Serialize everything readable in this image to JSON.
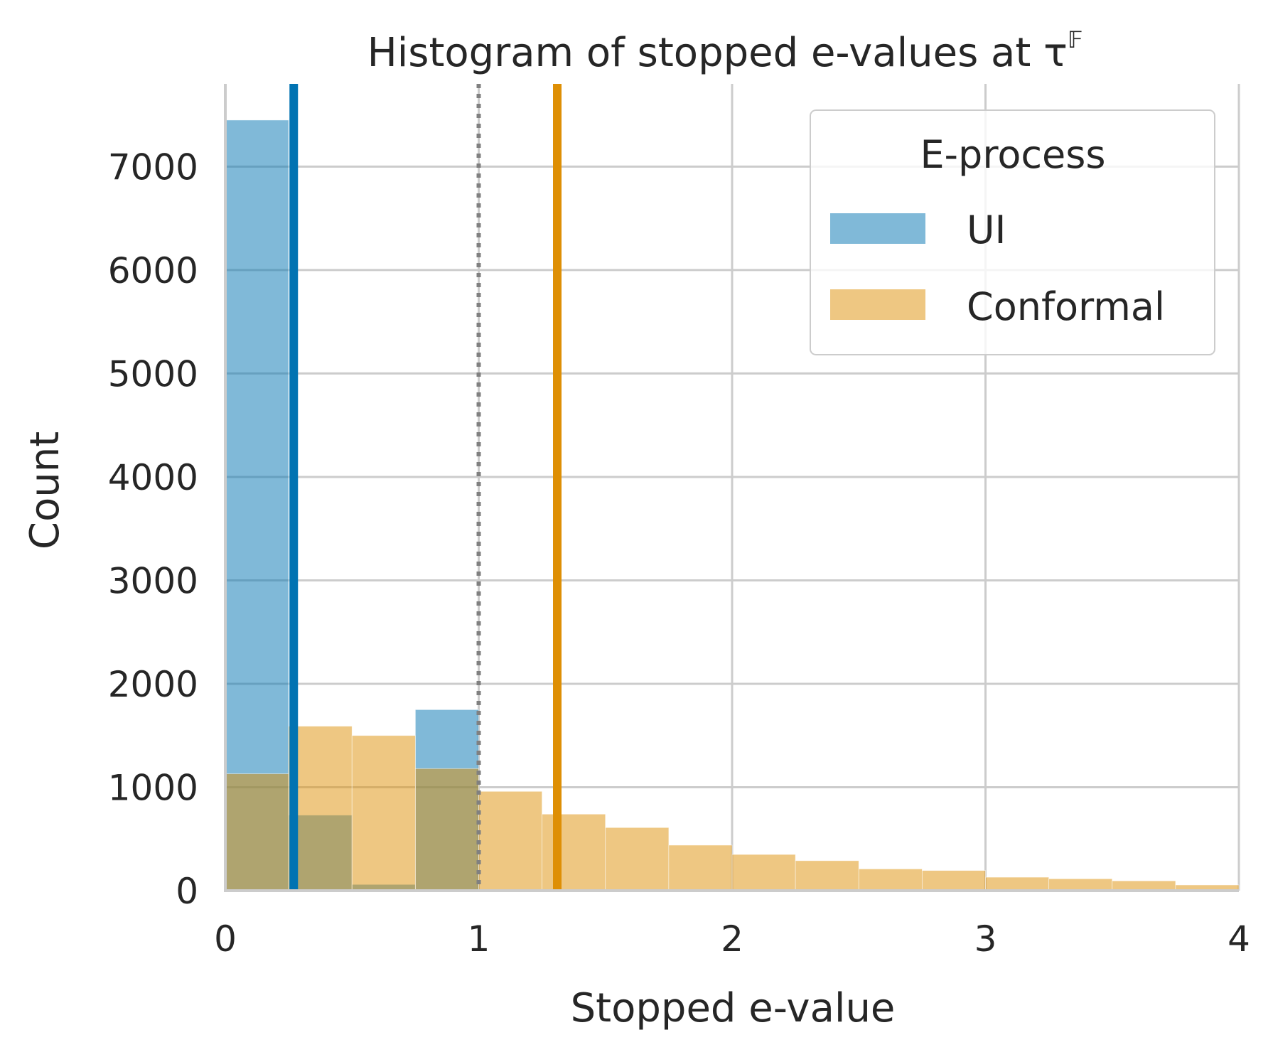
{
  "chart_data": {
    "type": "bar",
    "title": "Histogram of stopped e-values at τ",
    "title_superscript": "𝔽",
    "xlabel": "Stopped e-value",
    "ylabel": "Count",
    "xlim": [
      0,
      4
    ],
    "ylim": [
      0,
      7800
    ],
    "xticks": [
      0,
      1,
      2,
      3,
      4
    ],
    "yticks": [
      0,
      1000,
      2000,
      3000,
      4000,
      5000,
      6000,
      7000
    ],
    "grid": true,
    "bin_edges": [
      0,
      0.25,
      0.5,
      0.75,
      1.0,
      1.25,
      1.5,
      1.75,
      2.0,
      2.25,
      2.5,
      2.75,
      3.0,
      3.25,
      3.5,
      3.75,
      4.0
    ],
    "series": [
      {
        "name": "UI",
        "color": "#0173b2",
        "fill_opacity": 0.5,
        "values": [
          7450,
          730,
          60,
          1750,
          0,
          0,
          0,
          0,
          0,
          0,
          0,
          0,
          0,
          0,
          0,
          0
        ]
      },
      {
        "name": "Conformal",
        "color": "#de8f05",
        "fill_opacity": 0.5,
        "values": [
          1130,
          1590,
          1500,
          1180,
          960,
          740,
          610,
          440,
          350,
          290,
          210,
          195,
          130,
          115,
          95,
          55
        ]
      }
    ],
    "vertical_lines": [
      {
        "x": 0.27,
        "color": "#0173b2",
        "style": "solid",
        "series": "UI"
      },
      {
        "x": 1.0,
        "color": "#808080",
        "style": "dotted"
      },
      {
        "x": 1.31,
        "color": "#de8f05",
        "style": "solid",
        "series": "Conformal"
      }
    ],
    "legend": {
      "title": "E-process",
      "position": "top-right",
      "entries": [
        "UI",
        "Conformal"
      ]
    }
  }
}
